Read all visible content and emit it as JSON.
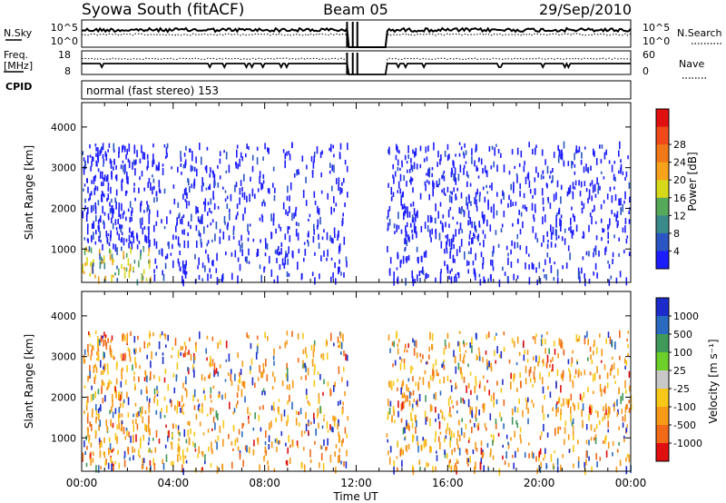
{
  "header": {
    "station": "Syowa South (fitACF)",
    "beam": "Beam 05",
    "date": "29/Sep/2010"
  },
  "noise_panel": {
    "left_label": "N.Sky",
    "right_label": "N.Search",
    "left_ticks": [
      "10^5",
      "10^0"
    ],
    "right_ticks": [
      "10^5",
      "10^0"
    ]
  },
  "freq_panel": {
    "left_label_1": "Freq.",
    "left_label_2": "[MHz]",
    "right_label": "Nave",
    "left_ticks": [
      "18",
      "8"
    ],
    "right_ticks": [
      "60",
      "0"
    ]
  },
  "cpid": {
    "label": "CPID",
    "value": "normal (fast stereo) 153"
  },
  "chart_data": [
    {
      "type": "heatmap",
      "quantity": "Power",
      "xlabel": "Time UT",
      "ylabel": "Slant Range [km]",
      "x_ticks": [
        "00:00",
        "04:00",
        "08:00",
        "12:00",
        "16:00",
        "20:00",
        "00:00"
      ],
      "x_range_hours": [
        0,
        24
      ],
      "y_ticks": [
        1000,
        2000,
        3000,
        4000
      ],
      "ylim": [
        180,
        4600
      ],
      "data_gap_hours": [
        11.6,
        13.3
      ],
      "colorbar": {
        "label": "Power [dB]",
        "ticks": [
          "4",
          "8",
          "12",
          "16",
          "20",
          "24",
          "28"
        ],
        "colors": [
          "#1c1cff",
          "#2a55c2",
          "#3b8a8a",
          "#56a85a",
          "#d8d81a",
          "#f6a21a",
          "#f07818",
          "#f04a1a",
          "#e01010"
        ]
      },
      "notes": "Sparse echoes mostly 1-6 dB (blue) across 500-3600 km; strong echoes (8-20 dB) near 300-1000 km between 00:00 and 03:00."
    },
    {
      "type": "heatmap",
      "quantity": "Velocity",
      "xlabel": "Time UT",
      "ylabel": "Slant Range [km]",
      "x_ticks": [
        "00:00",
        "04:00",
        "08:00",
        "12:00",
        "16:00",
        "20:00",
        "00:00"
      ],
      "x_range_hours": [
        0,
        24
      ],
      "y_ticks": [
        1000,
        2000,
        3000,
        4000
      ],
      "ylim": [
        180,
        4600
      ],
      "data_gap_hours": [
        11.6,
        13.3
      ],
      "colorbar": {
        "label": "Velocity [m s⁻¹]",
        "ticks": [
          "1000",
          "500",
          "100",
          "25",
          "-25",
          "-100",
          "-500",
          "-1000"
        ],
        "colors": [
          "#1c2ccc",
          "#2a6ac0",
          "#3f9a5a",
          "#6ccf2a",
          "#c8c8c8",
          "#f8c818",
          "#f69a18",
          "#f06a18",
          "#e01010"
        ]
      },
      "notes": "Mixed velocities; mostly small negative (yellow/orange) with scattered positive (blue/green) echoes."
    }
  ]
}
